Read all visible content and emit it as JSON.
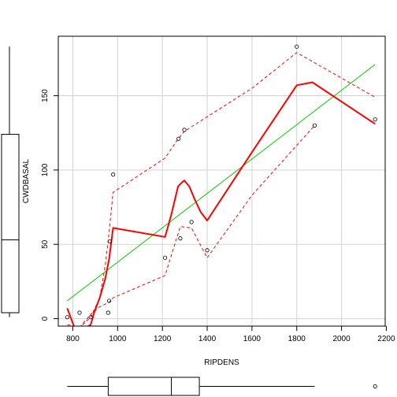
{
  "chart_data": {
    "type": "scatter",
    "title": "",
    "xlabel": "RIPDENS",
    "ylabel": "CWDBASAL",
    "xlim": [
      735,
      2195
    ],
    "ylim": [
      -5,
      190
    ],
    "xticks": [
      800,
      1000,
      1200,
      1400,
      1600,
      1800,
      2000,
      2200
    ],
    "yticks": [
      0,
      50,
      100,
      150
    ],
    "grid": true,
    "points": [
      {
        "x": 775,
        "y": 1
      },
      {
        "x": 830,
        "y": 4
      },
      {
        "x": 880,
        "y": 1
      },
      {
        "x": 958,
        "y": 4
      },
      {
        "x": 962,
        "y": 12
      },
      {
        "x": 965,
        "y": 52
      },
      {
        "x": 980,
        "y": 97
      },
      {
        "x": 1212,
        "y": 41
      },
      {
        "x": 1272,
        "y": 121
      },
      {
        "x": 1280,
        "y": 54
      },
      {
        "x": 1298,
        "y": 127
      },
      {
        "x": 1330,
        "y": 65
      },
      {
        "x": 1400,
        "y": 46
      },
      {
        "x": 1800,
        "y": 183
      },
      {
        "x": 1880,
        "y": 130
      },
      {
        "x": 2150,
        "y": 134
      }
    ],
    "regression_line": {
      "color": "#00cc00",
      "points": [
        [
          775,
          12
        ],
        [
          2150,
          171
        ]
      ]
    },
    "smooth_line": {
      "color": "#ff0000",
      "points": [
        [
          775,
          7
        ],
        [
          790,
          1
        ],
        [
          805,
          -5
        ],
        [
          830,
          -8
        ],
        [
          860,
          -6
        ],
        [
          880,
          -4
        ],
        [
          895,
          4
        ],
        [
          920,
          14
        ],
        [
          945,
          27
        ],
        [
          962,
          40
        ],
        [
          980,
          61
        ],
        [
          1212,
          55
        ],
        [
          1240,
          70
        ],
        [
          1270,
          89
        ],
        [
          1283,
          91
        ],
        [
          1298,
          93
        ],
        [
          1320,
          89
        ],
        [
          1345,
          80
        ],
        [
          1370,
          72
        ],
        [
          1400,
          66
        ],
        [
          1600,
          112
        ],
        [
          1800,
          157
        ],
        [
          1870,
          159
        ],
        [
          2150,
          131
        ]
      ]
    },
    "upper_band": {
      "color": "#ff0000",
      "points": [
        [
          775,
          -4
        ],
        [
          830,
          -6
        ],
        [
          880,
          1
        ],
        [
          920,
          14
        ],
        [
          945,
          36
        ],
        [
          962,
          58
        ],
        [
          980,
          85
        ],
        [
          1212,
          108
        ],
        [
          1270,
          121
        ],
        [
          1298,
          126
        ],
        [
          1600,
          155
        ],
        [
          1800,
          179
        ],
        [
          2150,
          149
        ]
      ]
    },
    "lower_band": {
      "color": "#ff0000",
      "points": [
        [
          830,
          -6
        ],
        [
          880,
          3
        ],
        [
          920,
          8
        ],
        [
          962,
          11
        ],
        [
          980,
          14
        ],
        [
          1212,
          29
        ],
        [
          1280,
          62
        ],
        [
          1330,
          61
        ],
        [
          1400,
          41
        ],
        [
          1600,
          83
        ],
        [
          1880,
          130
        ]
      ]
    },
    "y_boxplot": {
      "whisker_low": 1,
      "q1": 4,
      "median": 53,
      "q3": 124,
      "whisker_high": 183
    },
    "x_boxplot": {
      "whisker_low": 775,
      "q1": 958,
      "median": 1240,
      "q3": 1365,
      "whisker_high": 1880,
      "outliers": [
        2150
      ]
    }
  }
}
